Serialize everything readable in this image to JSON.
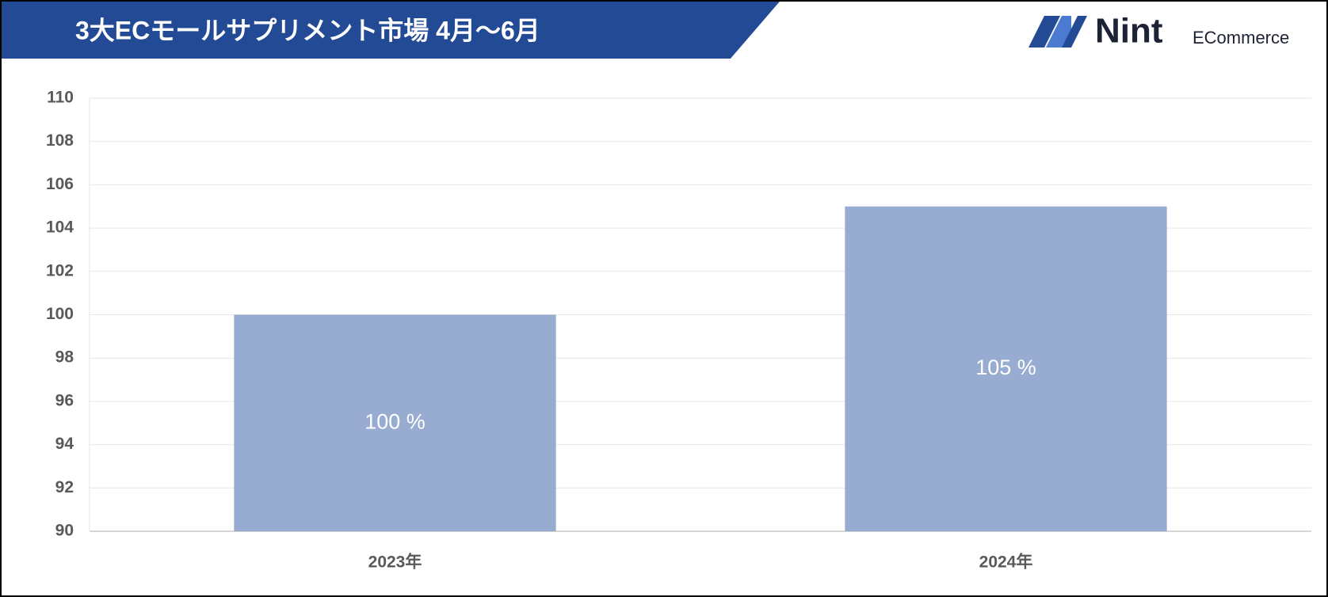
{
  "chart_data": {
    "type": "bar",
    "title": "3大ECモールサプリメント市場 4月～6月",
    "categories": [
      "2023年",
      "2024年"
    ],
    "values": [
      100,
      105
    ],
    "value_labels": [
      "100 %",
      "105 %"
    ],
    "color": "#98acd1",
    "ylim": [
      90,
      110
    ],
    "yticks": [
      90,
      92,
      94,
      96,
      98,
      100,
      102,
      104,
      106,
      108,
      110
    ],
    "grid": true
  },
  "logo": {
    "name": "Nint",
    "sub": "ECommerce"
  }
}
